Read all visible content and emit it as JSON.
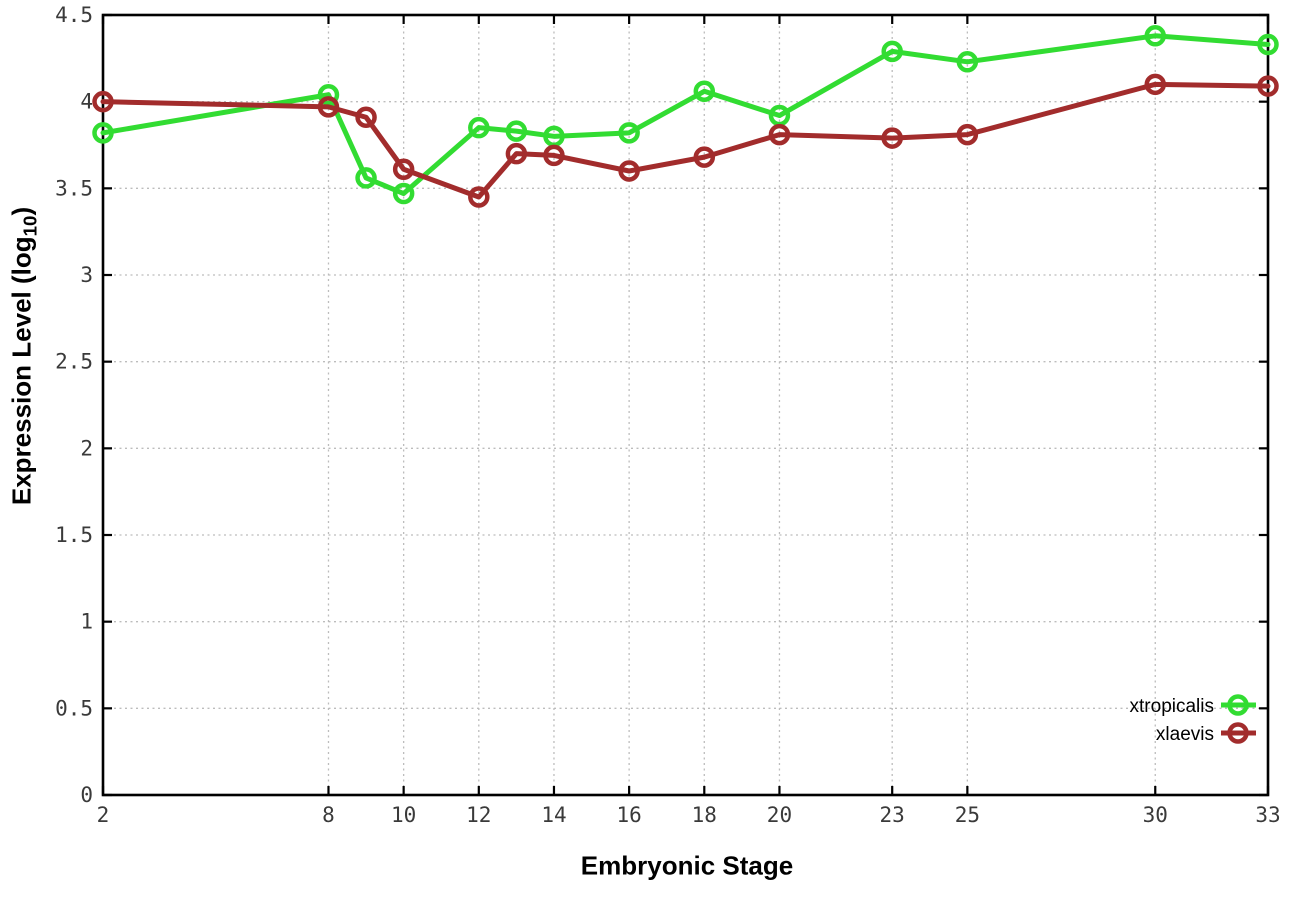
{
  "chart_data": {
    "type": "line",
    "title": "",
    "xlabel": "Embryonic Stage",
    "ylabel": "Expression Level (log10)",
    "ylabel_parts": {
      "prefix": "Expression Level (log",
      "sub": "10",
      "suffix": ")"
    },
    "x": [
      2,
      8,
      9,
      10,
      12,
      13,
      14,
      16,
      18,
      20,
      23,
      25,
      30,
      33
    ],
    "xlim": [
      2,
      33
    ],
    "ylim": [
      0,
      4.5
    ],
    "x_ticks": [
      2,
      8,
      10,
      12,
      14,
      16,
      18,
      20,
      23,
      25,
      30,
      33
    ],
    "y_ticks": [
      0,
      0.5,
      1,
      1.5,
      2,
      2.5,
      3,
      3.5,
      4,
      4.5
    ],
    "grid": true,
    "legend_position": "inside-bottom-right",
    "series": [
      {
        "name": "xtropicalis",
        "color": "#32DC32",
        "marker": "open-circle",
        "values": [
          3.82,
          4.04,
          3.56,
          3.47,
          3.85,
          3.83,
          3.8,
          3.82,
          4.06,
          3.92,
          4.29,
          4.23,
          4.38,
          4.33
        ]
      },
      {
        "name": "xlaevis",
        "color": "#A22C2C",
        "marker": "open-circle",
        "values": [
          4.0,
          3.97,
          3.91,
          3.61,
          3.45,
          3.7,
          3.69,
          3.6,
          3.68,
          3.81,
          3.79,
          3.81,
          4.1,
          4.09
        ]
      }
    ]
  },
  "colors": {
    "background": "#FFFFFF",
    "axis": "#000000",
    "grid": "#BCBCBC",
    "tick_label": "#3A3A3A",
    "series_green": "#32DC32",
    "series_darkred": "#A22C2C"
  }
}
